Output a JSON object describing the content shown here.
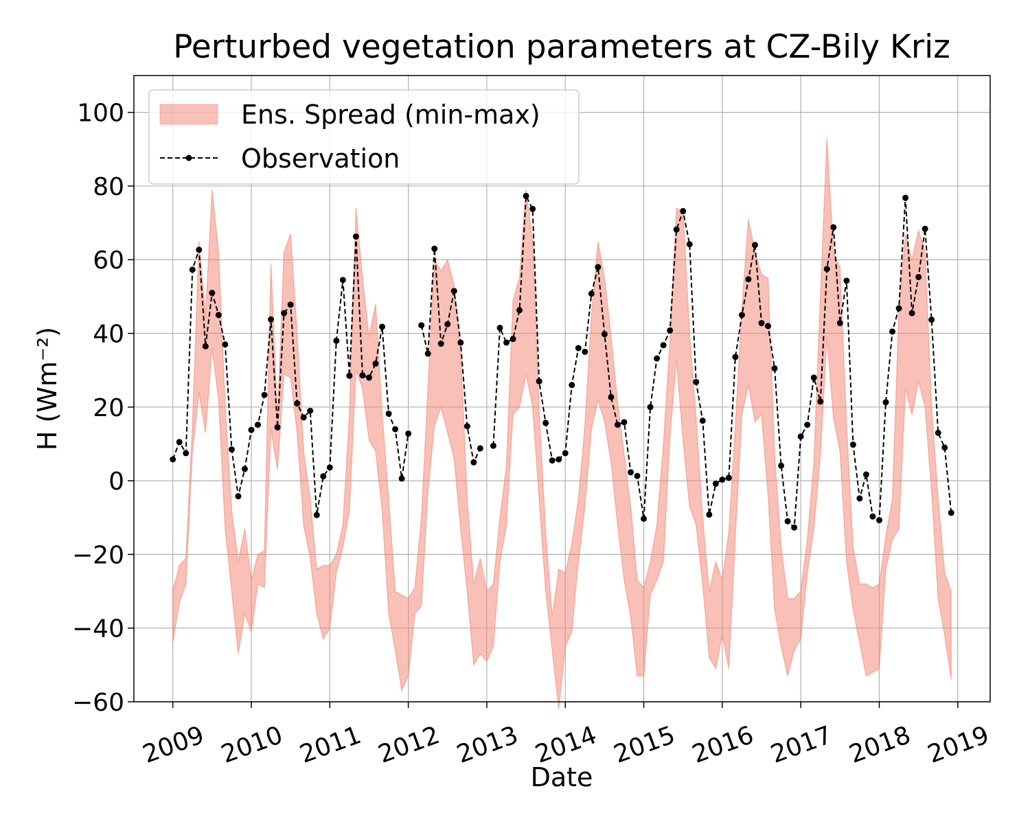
{
  "chart_data": {
    "type": "band-line",
    "title": "Perturbed vegetation parameters at CZ-Bily Kriz",
    "x_label": "Date",
    "y_label": "H  (Wm⁻²)",
    "x": [
      2009,
      2009.0833,
      2009.1667,
      2009.25,
      2009.3333,
      2009.4167,
      2009.5,
      2009.5833,
      2009.6667,
      2009.75,
      2009.8333,
      2009.9167,
      2010,
      2010.0833,
      2010.1667,
      2010.25,
      2010.3333,
      2010.4167,
      2010.5,
      2010.5833,
      2010.6667,
      2010.75,
      2010.8333,
      2010.9167,
      2011,
      2011.0833,
      2011.1667,
      2011.25,
      2011.3333,
      2011.4167,
      2011.5,
      2011.5833,
      2011.6667,
      2011.75,
      2011.8333,
      2011.9167,
      2012,
      2012.0833,
      2012.1667,
      2012.25,
      2012.3333,
      2012.4167,
      2012.5,
      2012.5833,
      2012.6667,
      2012.75,
      2012.8333,
      2012.9167,
      2013,
      2013.0833,
      2013.1667,
      2013.25,
      2013.3333,
      2013.4167,
      2013.5,
      2013.5833,
      2013.6667,
      2013.75,
      2013.8333,
      2013.9167,
      2014,
      2014.0833,
      2014.1667,
      2014.25,
      2014.3333,
      2014.4167,
      2014.5,
      2014.5833,
      2014.6667,
      2014.75,
      2014.8333,
      2014.9167,
      2015,
      2015.0833,
      2015.1667,
      2015.25,
      2015.3333,
      2015.4167,
      2015.5,
      2015.5833,
      2015.6667,
      2015.75,
      2015.8333,
      2015.9167,
      2016,
      2016.0833,
      2016.1667,
      2016.25,
      2016.3333,
      2016.4167,
      2016.5,
      2016.5833,
      2016.6667,
      2016.75,
      2016.8333,
      2016.9167,
      2017,
      2017.0833,
      2017.1667,
      2017.25,
      2017.3333,
      2017.4167,
      2017.5,
      2017.5833,
      2017.6667,
      2017.75,
      2017.8333,
      2017.9167,
      2018,
      2018.0833,
      2018.1667,
      2018.25,
      2018.3333,
      2018.4167,
      2018.5,
      2018.5833,
      2018.6667,
      2018.75,
      2018.8333,
      2018.9167
    ],
    "series": [
      {
        "name": "Ens. Spread (min-max)",
        "color": "#f4816f",
        "max": [
          -30,
          -23,
          -21,
          15,
          65,
          45,
          79,
          62,
          20,
          -8,
          -22,
          -13,
          -27,
          -20,
          -19,
          59,
          17,
          62,
          67,
          40,
          8,
          -5,
          -24,
          -23,
          -23,
          -20,
          -12,
          18,
          74,
          55,
          39,
          48,
          18,
          -5,
          -30,
          -31,
          -32,
          -29,
          -10,
          25,
          60,
          57,
          60,
          53,
          35,
          -5,
          -28,
          -21,
          -30,
          -28,
          -10,
          4,
          49,
          55,
          79,
          65,
          19,
          -14,
          -37,
          -24,
          -25,
          -17,
          -5,
          15,
          45,
          65,
          55,
          39,
          21,
          7,
          -7,
          -27,
          -29,
          -22,
          -12,
          10,
          38,
          74,
          73,
          40,
          17,
          -10,
          -30,
          -22,
          -27,
          -14,
          15,
          47,
          71,
          62,
          56,
          55,
          7,
          -18,
          -32,
          -32,
          -30,
          -16,
          5,
          50,
          93,
          62,
          58,
          15,
          -18,
          -28,
          -28,
          -29,
          -28,
          -15,
          -5,
          46,
          67,
          60,
          68,
          62,
          20,
          -5,
          -25,
          -30
        ],
        "min": [
          -44,
          -33,
          -28,
          8,
          24,
          13,
          36,
          22,
          -13,
          -30,
          -47,
          -36,
          -41,
          -28,
          -29,
          14,
          3,
          29,
          28,
          13,
          -12,
          -21,
          -36,
          -43,
          -40,
          -25,
          -18,
          -8,
          30,
          25,
          11,
          8,
          -8,
          -36,
          -46,
          -57,
          -53,
          -36,
          -34,
          -3,
          15,
          20,
          13,
          6,
          -13,
          -30,
          -50,
          -47,
          -49,
          -45,
          -22,
          -12,
          18,
          20,
          29,
          20,
          -5,
          -30,
          -46,
          -62,
          -45,
          -41,
          -22,
          -7,
          14,
          22,
          16,
          5,
          -12,
          -27,
          -37,
          -53,
          -53,
          -31,
          -27,
          -22,
          12,
          33,
          11,
          -7,
          -12,
          -28,
          -48,
          -51,
          -42,
          -51,
          -15,
          18,
          26,
          16,
          18,
          -4,
          -35,
          -45,
          -53,
          -46,
          -43,
          -25,
          -13,
          7,
          39,
          17,
          8,
          -22,
          -35,
          -44,
          -53,
          -52,
          -51,
          -24,
          -16,
          -13,
          25,
          18,
          27,
          20,
          -3,
          -32,
          -42,
          -54
        ]
      },
      {
        "name": "Observation",
        "color": "#000000",
        "values": [
          5.8,
          10.5,
          7.5,
          57.3,
          62.7,
          36.5,
          51,
          45,
          37,
          8.5,
          -4.2,
          3.2,
          13.8,
          15.2,
          23.3,
          43.8,
          14.5,
          45.5,
          47.8,
          21,
          17.2,
          19,
          -9.3,
          1.2,
          3.6,
          38,
          54.5,
          28.5,
          66.3,
          28.6,
          28,
          31.8,
          41.8,
          18.2,
          14,
          0.6,
          12.8,
          null,
          42.2,
          34.5,
          63,
          37.2,
          42.5,
          51.5,
          37.5,
          14.8,
          5,
          8.8,
          null,
          9.5,
          41.5,
          37.5,
          38.5,
          46.3,
          77.3,
          73.8,
          27,
          15.7,
          5.5,
          5.8,
          7.5,
          26,
          36,
          35,
          50.8,
          58,
          39.8,
          22.7,
          15.2,
          15.9,
          2.3,
          1.3,
          -10.3,
          20,
          33.2,
          36.8,
          40.8,
          68.2,
          73.2,
          64.2,
          26.8,
          16.3,
          -9.2,
          -0.8,
          0.3,
          0.8,
          33.6,
          45,
          54.7,
          64,
          42.8,
          42,
          30.5,
          4.1,
          -11,
          -12.7,
          12,
          15.2,
          28,
          21.5,
          57.5,
          68.8,
          42.8,
          54.3,
          9.8,
          -4.8,
          1.7,
          -9.7,
          -10.7,
          21.3,
          40.5,
          46.8,
          76.8,
          45.5,
          55.3,
          68.4,
          43.7,
          13,
          9,
          -8.7
        ]
      }
    ],
    "xlim": [
      2008.504,
      2019.413
    ],
    "xticks": [
      2009,
      2010,
      2011,
      2012,
      2013,
      2014,
      2015,
      2016,
      2017,
      2018,
      2019
    ],
    "ylim": [
      -60,
      110
    ],
    "yticks": [
      {
        "value": -60,
        "label": "−60"
      },
      {
        "value": -40,
        "label": "−40"
      },
      {
        "value": -20,
        "label": "−20"
      },
      0,
      20,
      40,
      60,
      80,
      100
    ],
    "grid": true,
    "legend": "upper left"
  }
}
